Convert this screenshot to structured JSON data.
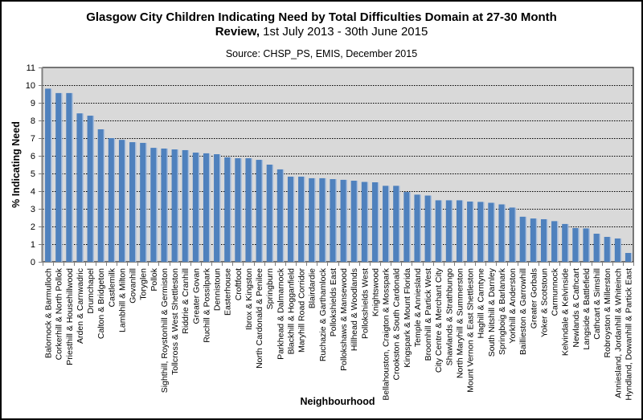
{
  "chart_data": {
    "type": "bar",
    "title_bold": "Glasgow City Children Indicating Need by Total Difficulties Domain at 27-30 Month",
    "title_line2_bold": "Review,",
    "title_line2_normal": " 1st July 2013 - 30th June 2015",
    "subtitle": "Source: CHSP_PS, EMIS, December 2015",
    "xlabel": "Neighbourhood",
    "ylabel": "% Indicating Need",
    "ylim": [
      0,
      11
    ],
    "yticks": [
      0,
      1,
      2,
      3,
      4,
      5,
      6,
      7,
      8,
      9,
      10,
      11
    ],
    "grid": true,
    "legend": "none",
    "colors": {
      "bar": "#4F81BD",
      "bar_shadow": "#A9BFDD",
      "plot_bg": "#D9D9D9",
      "grid": "#000000"
    },
    "categories": [
      "Balornock & Barmulloch",
      "Corkerhill & North Pollok",
      "Priesthill & Househillwood",
      "Arden & Carnwadric",
      "Drumchapel",
      "Calton & Bridgeton",
      "Castlemilk",
      "Lambhill & Milton",
      "Govanhill",
      "Toryglen",
      "Pollok",
      "Sighthill, Roystonhill & Germiston",
      "Tollcross & West Shettleston",
      "Riddrie & Cranhill",
      "Greater Govan",
      "Ruchill & Possilpark",
      "Dennistoun",
      "Easterhouse",
      "Croftfoot",
      "Ibrox & Kingston",
      "North Cardonald & Penilee",
      "Springburn",
      "Parkhead & Dalmarnock",
      "Blackhill & Hogganfield",
      "Maryhill Road Corridor",
      "Blairdardie",
      "Ruchazie & Garthamlock",
      "Pollokshields East",
      "Pollokshaws & Mansewood",
      "Hillhead & Woodlands",
      "Pollokshields West",
      "Knightswood",
      "Bellahouston, Craigton & Mosspark",
      "Crookston & South Cardonald",
      "Kingspark & Mount Florida",
      "Temple & Anniesland",
      "Broomhill & Partick West",
      "City Centre & Merchant City",
      "Shawlands & Strathbungo",
      "North Maryhill & Summerston",
      "Mount Vernon & East Shettleston",
      "Haghill & Carntyne",
      "South Nitshill & Darnley",
      "Springboig & Barlanark",
      "Yorkhill & Anderston",
      "Baillieston & Garrowhill",
      "Greater Gorbals",
      "Yoker & Scotstoun",
      "Carmunnock",
      "Kelvindale & Kelvinside",
      "Newlands & Cathcart",
      "Langside & Battlefield",
      "Cathcart & Simshill",
      "Robroyston & Millerston",
      "Anniesland, Jordanhill & Whiteinch",
      "Hyndland, Dowanhill & Partick East"
    ],
    "values": [
      9.8,
      9.55,
      9.55,
      8.4,
      8.27,
      7.5,
      7.0,
      6.9,
      6.77,
      6.73,
      6.45,
      6.41,
      6.36,
      6.32,
      6.18,
      6.14,
      6.09,
      5.91,
      5.86,
      5.86,
      5.77,
      5.5,
      5.23,
      4.82,
      4.82,
      4.73,
      4.73,
      4.68,
      4.64,
      4.59,
      4.52,
      4.5,
      4.3,
      4.3,
      3.95,
      3.8,
      3.75,
      3.48,
      3.48,
      3.48,
      3.41,
      3.39,
      3.34,
      3.25,
      3.07,
      2.55,
      2.45,
      2.41,
      2.3,
      2.14,
      1.91,
      1.89,
      1.59,
      1.41,
      1.32,
      0.5
    ]
  }
}
